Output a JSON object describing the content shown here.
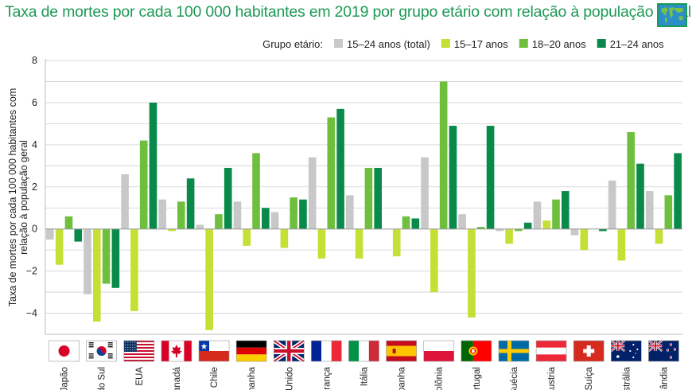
{
  "title": "Taxa de mortes por cada 100 000 habitantes em 2019 por grupo etário com relação à população geral",
  "icons": {
    "title": "world-map-icon"
  },
  "legend_title": "Grupo etário:",
  "chart_data": {
    "type": "bar",
    "ylabel": "Taxa de mortes por cada 100 000 habitantes com relação à população geral",
    "ylim": [
      -5,
      8
    ],
    "yticks": [
      -4,
      -2,
      0,
      2,
      4,
      6,
      8
    ],
    "ytick_labels": [
      "−4",
      "−2",
      "0",
      "2",
      "4",
      "6",
      "8"
    ],
    "grid": true,
    "legend_position": "top-right",
    "categories": [
      "Japão",
      "Coreia do Sul",
      "EUA",
      "Canadá",
      "Chile",
      "Alemanha",
      "Reino Unido",
      "França",
      "Itália",
      "Espanha",
      "Polônia",
      "Portugal",
      "Suécia",
      "Áustria",
      "Suíça",
      "Austrália",
      "Nova Zelândia"
    ],
    "visible_category_labels": [
      "Japão",
      "do Sul",
      "EUA",
      "Canadá",
      "Chile",
      "manha",
      "o Unido",
      "França",
      "Itália",
      "spanha",
      "Polônia",
      "ortugal",
      "Suécia",
      "Áustria",
      "Suíça",
      "ustrália",
      "elândia"
    ],
    "flags": [
      "japan",
      "south-korea",
      "usa",
      "canada",
      "chile",
      "germany",
      "uk",
      "france",
      "italy",
      "spain",
      "poland",
      "portugal",
      "sweden",
      "austria",
      "switzerland",
      "australia",
      "new-zealand"
    ],
    "series": [
      {
        "name": "15–24 anos (total)",
        "color": "#c8c8c8",
        "values": [
          -0.5,
          -3.1,
          2.6,
          1.4,
          0.2,
          1.3,
          0.8,
          3.4,
          1.6,
          0.0,
          3.4,
          0.7,
          -0.1,
          1.3,
          -0.3,
          2.3,
          1.8
        ]
      },
      {
        "name": "15–17 anos",
        "color": "#c5df34",
        "values": [
          -1.7,
          -4.4,
          -3.9,
          -0.1,
          -4.8,
          -0.8,
          -0.9,
          -1.4,
          -1.4,
          -1.3,
          -3.0,
          -4.2,
          -0.7,
          0.4,
          -1.0,
          -1.5,
          -0.7
        ]
      },
      {
        "name": "18–20 anos",
        "color": "#6fbf3f",
        "values": [
          0.6,
          -2.6,
          4.2,
          1.3,
          0.7,
          3.6,
          1.5,
          5.3,
          2.9,
          0.6,
          7.0,
          0.1,
          -0.1,
          1.4,
          0.0,
          4.6,
          1.6
        ]
      },
      {
        "name": "21–24 anos",
        "color": "#0a8a4a",
        "values": [
          -0.6,
          -2.8,
          6.0,
          2.4,
          2.9,
          1.0,
          1.4,
          5.7,
          2.9,
          0.5,
          4.9,
          4.9,
          0.3,
          1.8,
          -0.1,
          3.1,
          3.6
        ]
      }
    ]
  }
}
